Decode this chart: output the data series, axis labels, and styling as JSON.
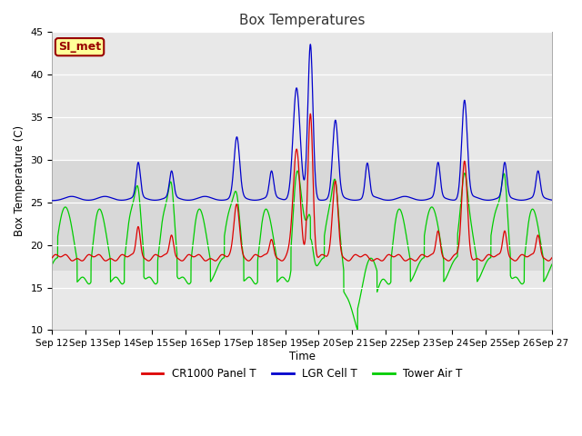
{
  "title": "Box Temperatures",
  "ylabel": "Box Temperature (C)",
  "xlabel": "Time",
  "ylim": [
    10,
    45
  ],
  "xlim": [
    0,
    360
  ],
  "yticks": [
    10,
    15,
    20,
    25,
    30,
    35,
    40,
    45
  ],
  "xtick_labels": [
    "Sep 12",
    "Sep 13",
    "Sep 14",
    "Sep 15",
    "Sep 16",
    "Sep 17",
    "Sep 18",
    "Sep 19",
    "Sep 20",
    "Sep 21",
    "Sep 22",
    "Sep 23",
    "Sep 24",
    "Sep 25",
    "Sep 26",
    "Sep 27"
  ],
  "xtick_positions": [
    0,
    24,
    48,
    72,
    96,
    120,
    144,
    168,
    192,
    216,
    240,
    264,
    288,
    312,
    336,
    360
  ],
  "colors": {
    "red": "#dd0000",
    "blue": "#0000cc",
    "green": "#00cc00"
  },
  "gray_band": [
    17,
    30
  ],
  "legend_label": "SI_met",
  "legend_box_color": "#ffff99",
  "legend_box_edge": "#990000",
  "series_labels": [
    "CR1000 Panel T",
    "LGR Cell T",
    "Tower Air T"
  ],
  "background_color": "#ffffff",
  "plot_bg_color": "#e8e8e8"
}
